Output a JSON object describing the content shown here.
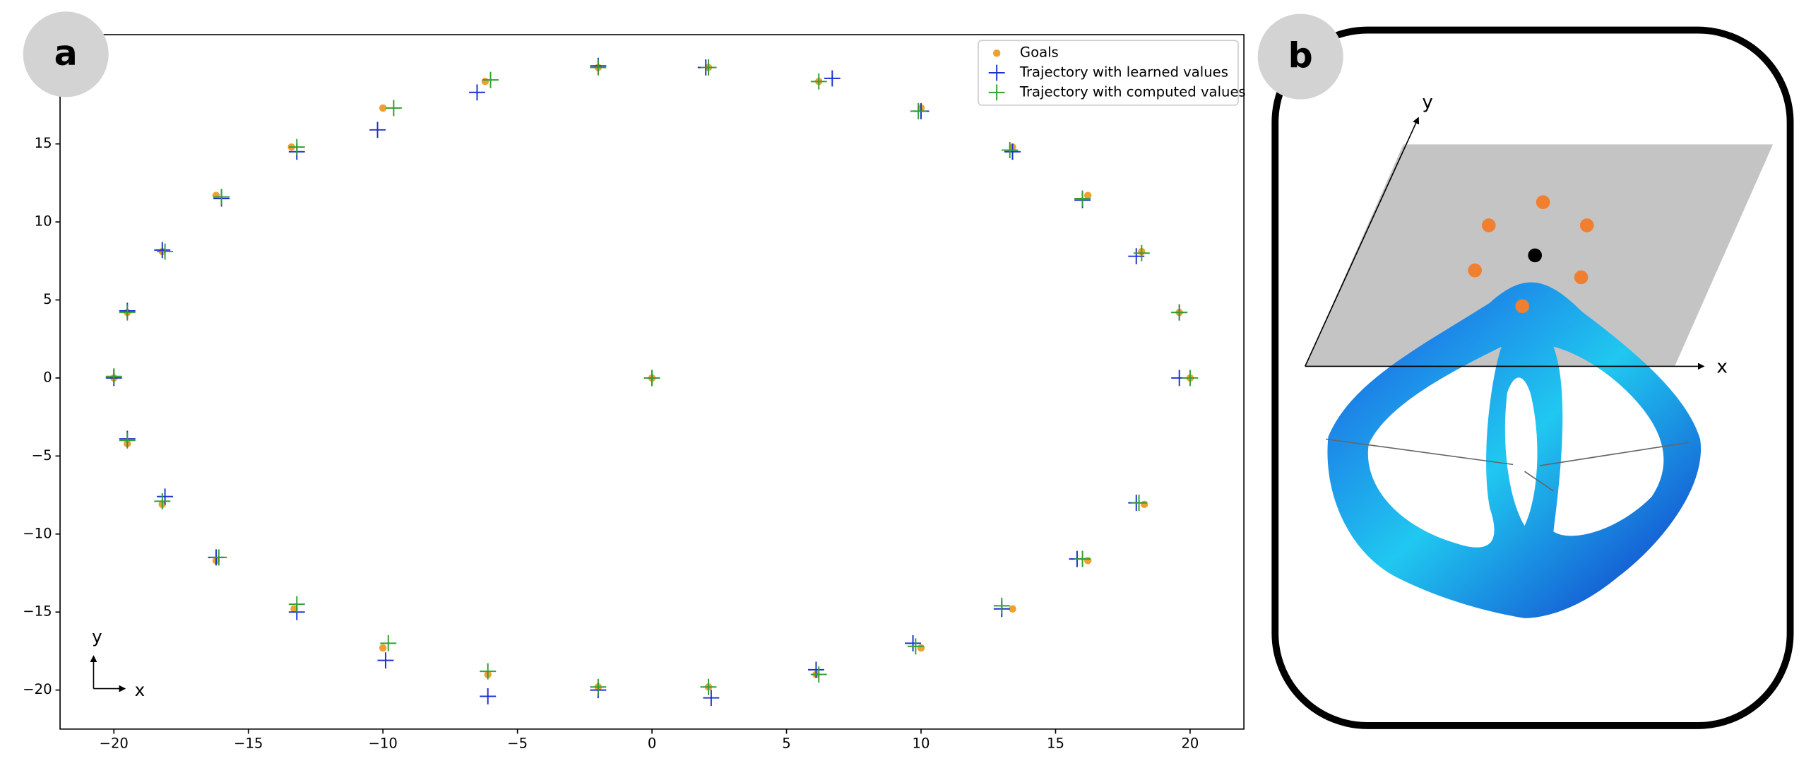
{
  "panel_labels": [
    "a",
    "b"
  ],
  "axis_indicator": {
    "y": "y",
    "x": "x"
  },
  "figure_b": {
    "x_axis": "x",
    "y_axis": "y"
  },
  "chart_data": {
    "type": "scatter",
    "xlim": [
      -22,
      22
    ],
    "ylim": [
      -22.5,
      22
    ],
    "xticks": [
      {
        "value": -20,
        "label": "−20"
      },
      {
        "value": -15,
        "label": "−15"
      },
      {
        "value": -10,
        "label": "−10"
      },
      {
        "value": -5,
        "label": "−5"
      },
      0,
      5,
      10,
      15,
      20
    ],
    "yticks": [
      {
        "value": -20,
        "label": "−20"
      },
      {
        "value": -15,
        "label": "−15"
      },
      {
        "value": -10,
        "label": "−10"
      },
      {
        "value": -5,
        "label": "−5"
      },
      0,
      5,
      10,
      15
    ],
    "grid": false,
    "legend": "upper right",
    "series": [
      {
        "name": "Goals",
        "color": "#f0a030",
        "marker": "dot",
        "x": [
          0,
          -20,
          -19.5,
          -18.2,
          -16.2,
          -13.3,
          -10,
          -6.1,
          -2,
          2.1,
          6.1,
          10,
          13.4,
          16.2,
          18.3,
          20,
          19.6,
          18.2,
          16.2,
          13.4,
          10,
          6.2,
          2.1,
          -2,
          -6.2,
          -10,
          -13.4,
          -16.2,
          -18.2,
          -19.5
        ],
        "values": [
          0,
          0,
          -4.2,
          -8.1,
          -11.7,
          -14.8,
          -17.3,
          -19,
          -19.8,
          -19.8,
          -19,
          -17.3,
          -14.8,
          -11.7,
          -8.1,
          0,
          4.2,
          8.1,
          11.7,
          14.8,
          17.3,
          19,
          19.9,
          19.9,
          19,
          17.3,
          14.8,
          11.7,
          8.1,
          4.2
        ]
      },
      {
        "name": "Trajectory with learned values",
        "color": "#2030d0",
        "marker": "plus",
        "x": [
          0,
          -20,
          -19.5,
          -18.1,
          -16.2,
          -13.2,
          -9.9,
          -6.1,
          -2,
          2.2,
          6.1,
          9.7,
          13,
          15.8,
          18,
          19.6,
          19.6,
          18,
          16,
          13.4,
          10,
          6.7,
          2,
          -2,
          -6.5,
          -10.2,
          -13.2,
          -16,
          -18.2,
          -19.5
        ],
        "values": [
          0,
          0,
          -3.9,
          -7.6,
          -11.5,
          -15,
          -18.1,
          -20.4,
          -20,
          -20.5,
          -18.7,
          -17,
          -14.8,
          -11.6,
          -8,
          0,
          4.2,
          7.8,
          11.4,
          14.5,
          17.1,
          19.2,
          19.9,
          20,
          18.3,
          15.9,
          14.5,
          11.5,
          8.2,
          4.3
        ]
      },
      {
        "name": "Trajectory with computed values",
        "color": "#30a030",
        "marker": "plus",
        "x": [
          0,
          -20,
          -19.5,
          -18.2,
          -16.1,
          -13.2,
          -9.8,
          -6.1,
          -2,
          2.1,
          6.2,
          9.8,
          13,
          16,
          18.1,
          20,
          19.6,
          18.2,
          16,
          13.3,
          9.9,
          6.2,
          2.1,
          -2,
          -6,
          -9.6,
          -13.2,
          -16,
          -18.1,
          -19.5
        ],
        "values": [
          0,
          0.1,
          -4,
          -7.9,
          -11.5,
          -14.5,
          -17,
          -18.8,
          -19.8,
          -19.8,
          -19,
          -17.2,
          -14.6,
          -11.6,
          -8,
          0,
          4.2,
          8,
          11.5,
          14.6,
          17.1,
          19,
          19.9,
          19.9,
          19.1,
          17.3,
          14.8,
          11.6,
          8.1,
          4.2
        ]
      }
    ]
  }
}
